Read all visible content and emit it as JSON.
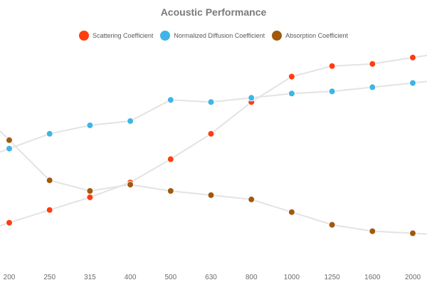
{
  "chart_data": {
    "type": "line",
    "title": "Acoustic Performance",
    "categories": [
      "200",
      "250",
      "315",
      "400",
      "500",
      "630",
      "800",
      "1000",
      "1250",
      "1600",
      "2000"
    ],
    "series": [
      {
        "name": "Scattering Coefficient",
        "color": "#ff3d0f",
        "values": [
          0.2,
          0.26,
          0.32,
          0.39,
          0.5,
          0.62,
          0.77,
          0.89,
          0.94,
          0.95,
          0.98
        ]
      },
      {
        "name": "Normalized Diffusion Coefficient",
        "color": "#3db5e6",
        "values": [
          0.55,
          0.62,
          0.66,
          0.68,
          0.78,
          0.77,
          0.79,
          0.81,
          0.82,
          0.84,
          0.86
        ]
      },
      {
        "name": "Absorption Coefficient",
        "color": "#a0590f",
        "values": [
          0.59,
          0.4,
          0.35,
          0.38,
          0.35,
          0.33,
          0.31,
          0.25,
          0.19,
          0.16,
          0.15
        ]
      }
    ],
    "ylim": [
      0,
      1.05
    ],
    "grid": false,
    "legend": "top-center",
    "line_color": "#e3e3e3"
  }
}
